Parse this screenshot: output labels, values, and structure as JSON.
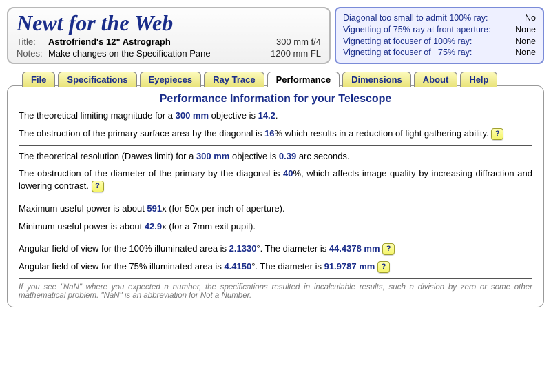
{
  "header": {
    "app_title": "Newt for the Web",
    "title_label": "Title:",
    "title_value": "Astrofriend's 12\" Astrograph",
    "aperture": "300 mm f/4",
    "notes_label": "Notes:",
    "notes_value": "Make changes on the Specification Pane",
    "focal_length": "1200 mm FL"
  },
  "diagnostics": {
    "r1_label": "Diagonal too small to admit 100% ray:",
    "r1_val": "No",
    "r2_label": "Vignetting of 75% ray at front aperture:",
    "r2_val": "None",
    "r3_label": "Vignetting at focuser of 100% ray:",
    "r3_val": "None",
    "r4_label": "Vignetting at focuser of   75% ray:",
    "r4_val": "None"
  },
  "tabs": {
    "file": "File",
    "specs": "Specifications",
    "eyepieces": "Eyepieces",
    "raytrace": "Ray Trace",
    "performance": "Performance",
    "dimensions": "Dimensions",
    "about": "About",
    "help": "Help"
  },
  "content": {
    "heading": "Performance Information for your Telescope",
    "p1a": "The theoretical limiting magnitude for a ",
    "p1b": "300 mm",
    "p1c": " objective is ",
    "p1d": "14.2",
    "p1e": ".",
    "p2a": "The obstruction of the primary surface area by the diagonal is ",
    "p2b": "16",
    "p2c": "% which results in a reduction of light gathering ability. ",
    "p3a": "The theoretical resolution (Dawes limit) for a ",
    "p3b": "300 mm",
    "p3c": " objective is ",
    "p3d": "0.39",
    "p3e": " arc seconds.",
    "p4a": "The obstruction of the diameter of the primary by the diagonal is ",
    "p4b": "40",
    "p4c": "%, which affects image quality by increasing diffraction and lowering contrast. ",
    "p5a": "Maximum useful power is about ",
    "p5b": "591",
    "p5c": "x (for 50x per inch of aperture).",
    "p6a": "Minimum useful power is about ",
    "p6b": "42.9",
    "p6c": "x (for a 7mm exit pupil).",
    "p7a": "Angular field of view for the 100% illuminated area is ",
    "p7b": "2.1330",
    "p7c": "°. The diameter is ",
    "p7d": "44.4378 mm ",
    "p8a": "Angular field of view for the 75% illuminated area is ",
    "p8b": "4.4150",
    "p8c": "°. The diameter is ",
    "p8d": "91.9787 mm ",
    "footnote": "If you see \"NaN\" where you expected a number, the specifications resulted in incalculable results, such a division by zero or some other mathematical problem. \"NaN\" is an abbreviation for Not a Number.",
    "help_q": "?"
  }
}
